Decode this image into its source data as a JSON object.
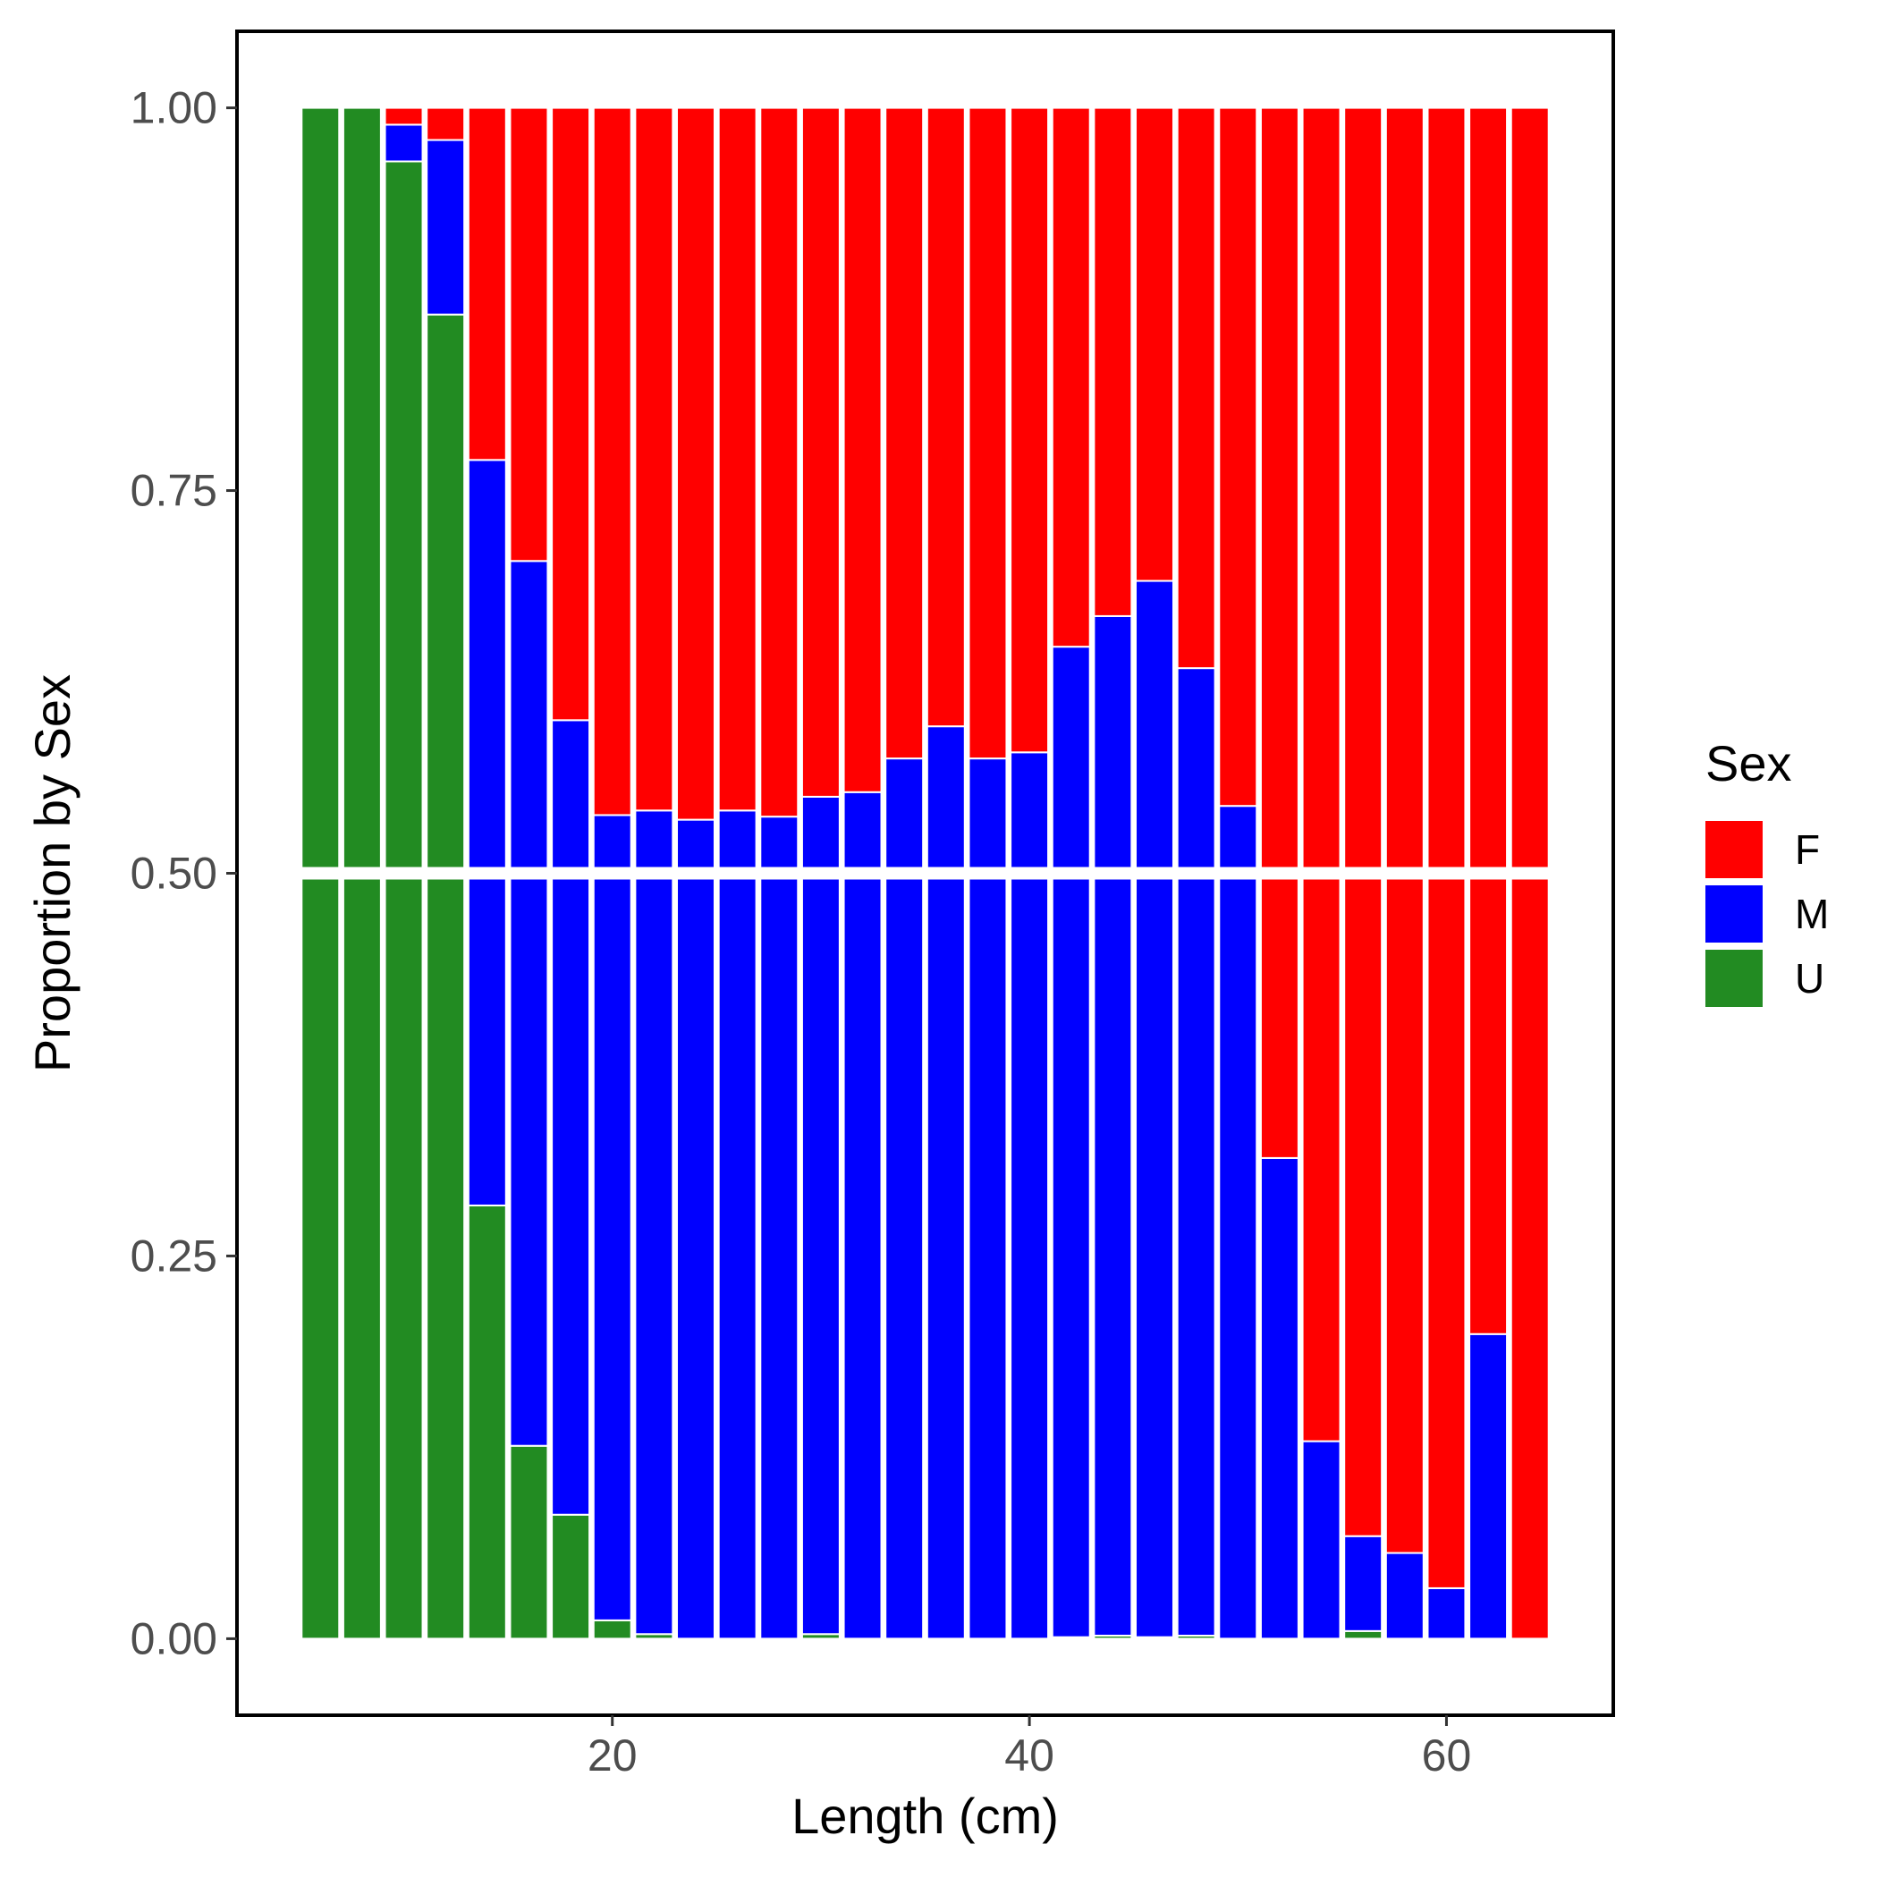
{
  "chart_data": {
    "type": "bar",
    "stacked": true,
    "xlabel": "Length (cm)",
    "ylabel": "Proportion by Sex",
    "x_ticks": [
      20,
      40,
      60
    ],
    "y_ticks": [
      "0.00",
      "0.25",
      "0.50",
      "0.75",
      "1.00"
    ],
    "xlim": [
      2,
      68
    ],
    "ylim": [
      -0.05,
      1.05
    ],
    "reference_line_y": 0.5,
    "grid": false,
    "legend": {
      "title": "Sex",
      "position": "right",
      "entries": [
        {
          "key": "F",
          "label": "F",
          "color": "#ff0000"
        },
        {
          "key": "M",
          "label": "M",
          "color": "#0000ff"
        },
        {
          "key": "U",
          "label": "U",
          "color": "#228b22"
        }
      ]
    },
    "x": [
      6,
      8,
      10,
      12,
      14,
      16,
      18,
      20,
      22,
      24,
      26,
      28,
      30,
      32,
      34,
      36,
      38,
      40,
      42,
      44,
      46,
      48,
      50,
      52,
      54,
      56,
      58,
      60,
      62,
      64
    ],
    "series": [
      {
        "name": "U",
        "values": [
          1.0,
          1.0,
          0.965,
          0.865,
          0.283,
          0.126,
          0.081,
          0.012,
          0.003,
          0.0,
          0.0,
          0.0,
          0.003,
          0.0,
          0.0,
          0.0,
          0.0,
          0.0,
          0.001,
          0.002,
          0.001,
          0.002,
          0.0,
          0.0,
          0.0,
          0.005,
          0.0,
          0.0,
          0.0,
          0.0
        ]
      },
      {
        "name": "M",
        "values": [
          0.0,
          0.0,
          0.024,
          0.114,
          0.487,
          0.578,
          0.519,
          0.526,
          0.538,
          0.535,
          0.541,
          0.537,
          0.547,
          0.553,
          0.575,
          0.596,
          0.575,
          0.579,
          0.647,
          0.666,
          0.69,
          0.632,
          0.544,
          0.314,
          0.129,
          0.062,
          0.056,
          0.033,
          0.199,
          0.0
        ]
      },
      {
        "name": "F",
        "values": [
          0.0,
          0.0,
          0.011,
          0.021,
          0.23,
          0.296,
          0.4,
          0.462,
          0.459,
          0.465,
          0.459,
          0.463,
          0.45,
          0.447,
          0.425,
          0.404,
          0.425,
          0.421,
          0.352,
          0.332,
          0.309,
          0.366,
          0.456,
          0.686,
          0.871,
          0.933,
          0.944,
          0.967,
          0.801,
          1.0
        ]
      }
    ]
  }
}
